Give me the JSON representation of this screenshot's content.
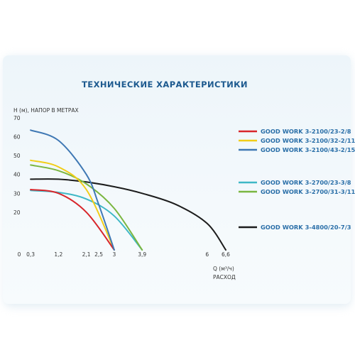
{
  "chart_data": {
    "type": "line",
    "title": "ТЕХНИЧЕСКИЕ ХАРАКТЕРИСТИКИ",
    "ylabel": "Н (м), НАПОР В МЕТРАХ",
    "xlabel_line1": "Q (м³/ч)",
    "xlabel_line2": "РАСХОД",
    "origin_label": "0",
    "xlim": [
      0,
      6.6
    ],
    "ylim": [
      0,
      70
    ],
    "x_ticks": [
      {
        "value": 0.3,
        "label": "0,3"
      },
      {
        "value": 1.2,
        "label": "1,2"
      },
      {
        "value": 2.1,
        "label": "2,1"
      },
      {
        "value": 2.5,
        "label": "2,5"
      },
      {
        "value": 3,
        "label": "3"
      },
      {
        "value": 3.9,
        "label": "3,9"
      },
      {
        "value": 6,
        "label": "6"
      },
      {
        "value": 6.6,
        "label": "6,6"
      }
    ],
    "y_ticks": [
      {
        "value": 20,
        "label": "20"
      },
      {
        "value": 30,
        "label": "30"
      },
      {
        "value": 40,
        "label": "40"
      },
      {
        "value": 50,
        "label": "50"
      },
      {
        "value": 60,
        "label": "60"
      },
      {
        "value": 70,
        "label": "70"
      }
    ],
    "grid": false,
    "legend_position": "right",
    "series": [
      {
        "name": "GOOD WORK 3-2100/23-2/8",
        "color": "#d8262b",
        "x": [
          0.3,
          1.2,
          2.1,
          3.0
        ],
        "y": [
          32,
          30,
          20,
          0
        ]
      },
      {
        "name": "GOOD WORK 3-2100/32-2/11",
        "color": "#f1cd18",
        "x": [
          0.3,
          1.2,
          2.1,
          3.0
        ],
        "y": [
          47.5,
          44,
          32,
          0
        ]
      },
      {
        "name": "GOOD WORK 3-2100/43-2/15",
        "color": "#3f78b4",
        "x": [
          0.3,
          1.2,
          2.1,
          2.5,
          3.0
        ],
        "y": [
          63.5,
          58,
          40,
          24,
          0
        ]
      },
      {
        "name": "GOOD WORK 3-2700/23-3/8",
        "color": "#3fb8c6",
        "x": [
          0.3,
          1.2,
          2.1,
          3.0,
          3.9
        ],
        "y": [
          31.5,
          30.5,
          27,
          18,
          0
        ]
      },
      {
        "name": "GOOD WORK 3-2700/31-3/11",
        "color": "#7ab640",
        "x": [
          0.3,
          1.2,
          2.1,
          3.0,
          3.9
        ],
        "y": [
          45,
          42,
          35,
          22,
          0
        ]
      },
      {
        "name": "GOOD WORK 3-4800/20-7/3",
        "color": "#1c1c1c",
        "x": [
          0.3,
          1.2,
          2.1,
          3.0,
          3.9,
          5.0,
          6.0,
          6.6
        ],
        "y": [
          37.5,
          37.5,
          36,
          33.5,
          30,
          24,
          14,
          0
        ]
      }
    ]
  }
}
